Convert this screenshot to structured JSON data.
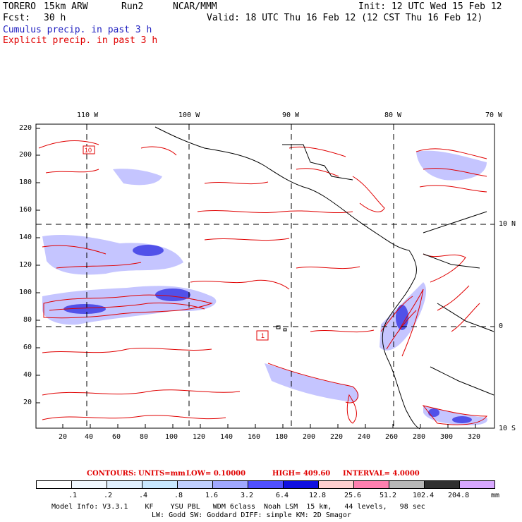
{
  "header": {
    "model": "TORERO",
    "resolution": "15km ARW",
    "run": "Run2",
    "org": "NCAR/MMM",
    "init": "Init: 12 UTC Wed 15 Feb 12",
    "fcst_label": "Fcst:",
    "fcst_value": "30 h",
    "valid": "Valid: 18 UTC Thu 16 Feb 12 (12 CST Thu 16 Feb 12)",
    "line_cumulus": "Cumulus precip. in past 3 h",
    "line_explicit": "Explicit precip. in past 3 h"
  },
  "map": {
    "lon_labels": [
      "110 W",
      "100 W",
      "90 W",
      "80 W",
      "70 W"
    ],
    "lat_labels": [
      "10 N",
      "0",
      "10 S"
    ],
    "y_ticks": [
      "220",
      "200",
      "180",
      "160",
      "140",
      "120",
      "100",
      "80",
      "60",
      "40",
      "20"
    ],
    "x_ticks": [
      "20",
      "40",
      "60",
      "80",
      "100",
      "120",
      "140",
      "160",
      "180",
      "200",
      "220",
      "240",
      "260",
      "280",
      "300",
      "320"
    ],
    "explicit_color": "#e00000",
    "cumulus_color": "#3a3aff",
    "box_labels": [
      "10",
      "1"
    ]
  },
  "contours_info": {
    "contours": "CONTOURS:",
    "units": "UNITS=mm",
    "low": "LOW= 0.10000",
    "high": "HIGH= 409.60",
    "interval": "INTERVAL= 4.0000"
  },
  "legend": {
    "labels": [
      ".1",
      ".2",
      ".4",
      ".8",
      "1.6",
      "3.2",
      "6.4",
      "12.8",
      "25.6",
      "51.2",
      "102.4",
      "204.8"
    ],
    "unit": "mm",
    "colors": [
      "#ffffff",
      "#f0f8ff",
      "#e0f0ff",
      "#c8e8ff",
      "#c0d0ff",
      "#a0a8ff",
      "#5050ff",
      "#1010e0",
      "#ffd0d0",
      "#ff80b0",
      "#b8b8b8",
      "#303030",
      "#d8a8ff"
    ]
  },
  "footer": {
    "line1": "Model Info: V3.3.1    KF    YSU PBL   WDM 6class  Noah LSM  15 km,   44 levels,   98 sec",
    "line2": "LW: Godd SW: Goddard DIFF: simple KM: 2D Smagor"
  }
}
